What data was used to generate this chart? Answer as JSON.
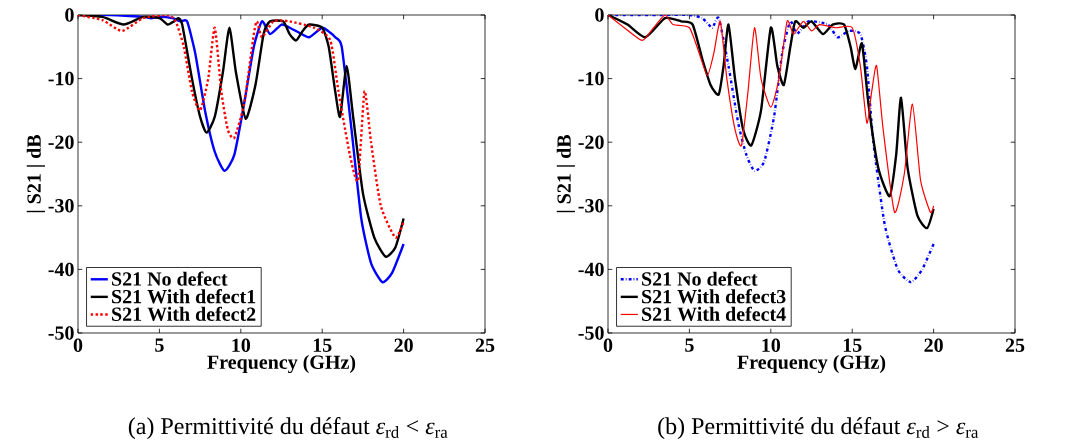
{
  "chart_data": [
    {
      "type": "line",
      "xlabel": "Frequency (GHz)",
      "ylabel": "| S21 | dB",
      "xlim": [
        0,
        25
      ],
      "ylim": [
        -50,
        0
      ],
      "xticks": [
        0,
        5,
        10,
        15,
        20,
        25
      ],
      "yticks": [
        -50,
        -40,
        -30,
        -20,
        -10,
        0
      ],
      "legend": "bottom left",
      "grid": false,
      "annotations": [
        "(a) Permittivité du défaut *ε*$_{rd}$ < *ε*$_{ra}$"
      ],
      "series": [
        {
          "name": "S21  No defect",
          "color": "#0000ff",
          "line_style": "solid",
          "x": [
            0,
            2,
            4,
            4.5,
            5,
            5.8,
            6.3,
            6.7,
            7.2,
            7.8,
            8.4,
            9.0,
            9.6,
            10.2,
            10.8,
            11.3,
            11.8,
            12.5,
            13.0,
            13.6,
            14.2,
            15.0,
            15.5,
            15.8,
            16.2,
            16.8,
            17.4,
            18.0,
            18.7,
            19.3,
            20
          ],
          "values": [
            0,
            0,
            -0.3,
            -0.5,
            -0.3,
            -0.5,
            -1,
            -1,
            -6,
            -15,
            -21.5,
            -24.5,
            -22,
            -14,
            -5,
            -1,
            -3,
            -1.5,
            -2,
            -2.8,
            -3.5,
            -2,
            -2.8,
            -3.5,
            -5,
            -18,
            -32,
            -39,
            -42,
            -40.5,
            -36
          ]
        },
        {
          "name": "S21  With defect1",
          "color": "#000000",
          "line_style": "solid",
          "x": [
            0,
            1.5,
            2.8,
            4,
            5,
            5.5,
            5.9,
            6.15,
            6.4,
            7.0,
            7.5,
            7.9,
            8.4,
            8.9,
            9.3,
            9.7,
            10.3,
            10.9,
            11.4,
            11.8,
            12.6,
            13.0,
            13.4,
            13.8,
            14.2,
            15.0,
            15.4,
            15.8,
            16.1,
            16.5,
            16.9,
            17.5,
            18.2,
            18.9,
            19.5,
            20
          ],
          "values": [
            0,
            -0.3,
            -1.5,
            -0.3,
            -0.5,
            -1.5,
            -1,
            -0.5,
            -1.5,
            -10,
            -16,
            -18.5,
            -16,
            -9,
            -2,
            -9,
            -16.3,
            -11,
            -3,
            -1,
            -1,
            -3,
            -4,
            -2.5,
            -1.5,
            -2,
            -5,
            -12,
            -16,
            -8,
            -16,
            -28,
            -35,
            -38,
            -36.5,
            -32
          ]
        },
        {
          "name": "S21  With defect2",
          "color": "#ff0000",
          "line_style": "dotted",
          "x": [
            0,
            1.5,
            2.7,
            4,
            5.5,
            6.0,
            6.5,
            7.0,
            7.5,
            8.0,
            8.4,
            8.8,
            9.2,
            9.6,
            10.2,
            10.8,
            11.0,
            11.3,
            12.0,
            13.0,
            14.5,
            15.5,
            16.0,
            16.7,
            17.2,
            17.6,
            18.0,
            18.6,
            19.5,
            20
          ],
          "values": [
            0,
            -0.8,
            -2.5,
            -0.5,
            0,
            -1,
            -5,
            -12,
            -15,
            -10,
            -2,
            -12,
            -18,
            -19.3,
            -14,
            -3,
            -1,
            -3.5,
            -1,
            -1,
            -2,
            -4,
            -12,
            -22,
            -26,
            -12,
            -20,
            -30,
            -35,
            -32.5
          ]
        }
      ]
    },
    {
      "type": "line",
      "xlabel": "Frequency (GHz)",
      "ylabel": "| S21 | dB",
      "xlim": [
        0,
        25
      ],
      "ylim": [
        -50,
        0
      ],
      "xticks": [
        0,
        5,
        10,
        15,
        20,
        25
      ],
      "yticks": [
        -50,
        -40,
        -30,
        -20,
        -10,
        0
      ],
      "legend": "bottom left",
      "grid": false,
      "annotations": [
        "(b) Permittivité du défaut *ε*$_{rd}$ > *ε*$_{ra}$"
      ],
      "series": [
        {
          "name": "S21  No defect",
          "color": "#0000ff",
          "line_style": "dashdot",
          "x": [
            0,
            3,
            5,
            5.8,
            6.4,
            6.8,
            7.4,
            8.0,
            8.5,
            9.0,
            9.6,
            10.2,
            10.7,
            11.2,
            11.6,
            12.3,
            13.5,
            14.1,
            14.8,
            15.5,
            15.9,
            16.3,
            17.0,
            17.8,
            18.6,
            19.3,
            20
          ],
          "values": [
            0,
            0,
            0,
            -0.5,
            -2,
            -0.5,
            -8,
            -17,
            -22,
            -24.5,
            -23,
            -16,
            -6,
            -1,
            -3,
            -1,
            -1.5,
            -3.5,
            -2.5,
            -3,
            -8,
            -20,
            -33,
            -40,
            -42,
            -40,
            -36
          ]
        },
        {
          "name": "S21  With defect3",
          "color": "#000000",
          "line_style": "solid",
          "x": [
            0,
            1.2,
            2.3,
            3.5,
            4.5,
            5.2,
            5.8,
            6.3,
            6.8,
            7.1,
            7.4,
            7.8,
            8.3,
            8.8,
            9.4,
            10.0,
            10.4,
            10.8,
            11.2,
            11.5,
            12.0,
            12.5,
            13.2,
            13.8,
            14.5,
            14.9,
            15.2,
            15.6,
            16.0,
            16.6,
            17.3,
            17.7,
            18.0,
            18.4,
            19.0,
            19.6,
            20
          ],
          "values": [
            0,
            -1.5,
            -3.5,
            -0.5,
            -1,
            -1.5,
            -7,
            -11,
            -12.5,
            -8,
            -1.5,
            -10,
            -18,
            -20.5,
            -15,
            -2,
            -8,
            -11,
            -5,
            -1,
            -2,
            -1,
            -3,
            -1.5,
            -1.5,
            -5,
            -8.5,
            -4.5,
            -14,
            -24,
            -28.5,
            -22,
            -13,
            -24,
            -31.5,
            -33.5,
            -30.5
          ]
        },
        {
          "name": "S21  With defect4",
          "color": "#ff0000",
          "line_style": "solid",
          "x": [
            0,
            1.0,
            2.1,
            2.8,
            3.5,
            4.0,
            5.0,
            5.6,
            6.1,
            6.5,
            6.9,
            7.3,
            7.8,
            8.2,
            8.6,
            9.0,
            9.4,
            10.0,
            10.5,
            11.0,
            11.4,
            12.0,
            12.5,
            13.0,
            14.0,
            15.0,
            15.5,
            15.9,
            16.2,
            16.5,
            16.9,
            17.6,
            18.2,
            18.7,
            19.2,
            19.8,
            20
          ],
          "values": [
            0,
            -2,
            -4,
            -2,
            0,
            -1.5,
            -2,
            -6,
            -9.5,
            -6,
            -1,
            -10,
            -18,
            -20.5,
            -12,
            -2,
            -10,
            -14.5,
            -10,
            -1,
            -3,
            -1,
            -2.5,
            -1.5,
            -2,
            -2,
            -8,
            -17,
            -12,
            -8,
            -18,
            -31,
            -25,
            -14,
            -26,
            -31,
            -30
          ]
        }
      ]
    }
  ]
}
